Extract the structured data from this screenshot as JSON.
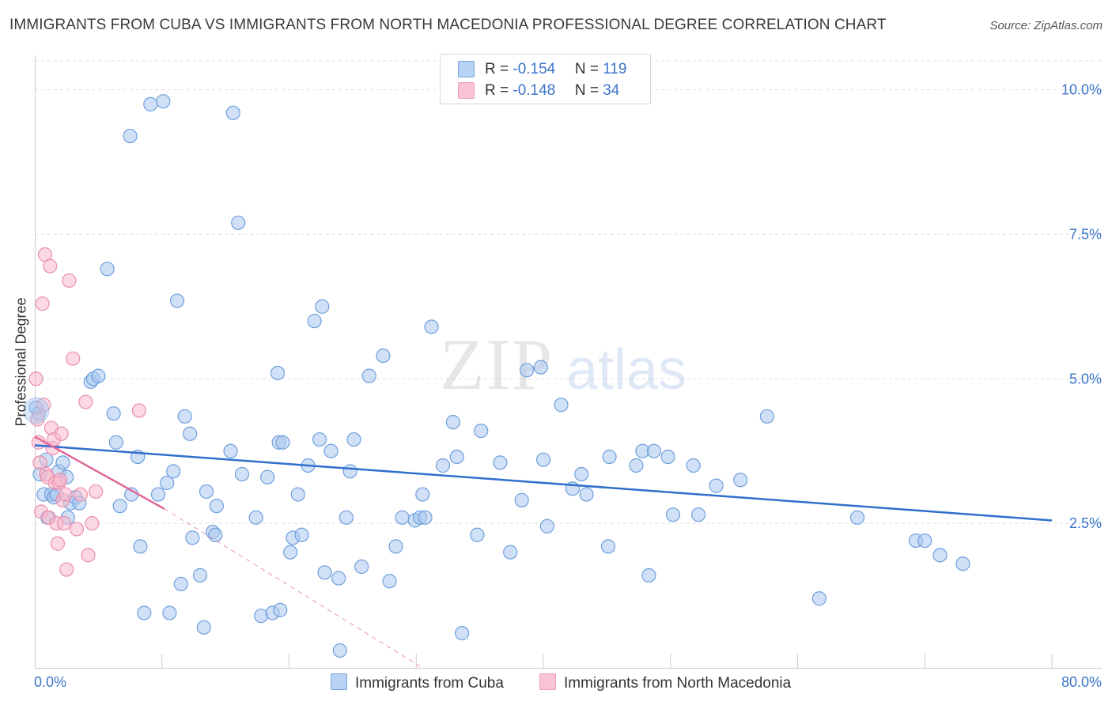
{
  "title": "IMMIGRANTS FROM CUBA VS IMMIGRANTS FROM NORTH MACEDONIA PROFESSIONAL DEGREE CORRELATION CHART",
  "source": "Source: ZipAtlas.com",
  "watermark": {
    "zip": "ZIP",
    "atlas": "atlas"
  },
  "colors": {
    "cuba_fill": "#a9c8f0",
    "cuba_stroke": "#6f9fdc",
    "cuba_line": "#2f6fcc",
    "mk_fill": "#f7b8cc",
    "mk_stroke": "#ea8fae",
    "mk_line": "#e0679a",
    "axis_text": "#3b75c9",
    "grid": "#dddddd"
  },
  "legend": {
    "rows": [
      {
        "r_label": "R = ",
        "r_value": "-0.154",
        "n_label": "N = ",
        "n_value": "119"
      },
      {
        "r_label": "R = ",
        "r_value": "-0.148",
        "n_label": "N = ",
        "n_value": "34"
      }
    ]
  },
  "chart_data": {
    "type": "scatter",
    "xlabel": "",
    "ylabel": "Professional Degree",
    "xlim": [
      0,
      80
    ],
    "ylim": [
      0,
      10.5
    ],
    "x_tick_labels": [
      "0.0%",
      "80.0%"
    ],
    "y_ticks": [
      2.5,
      5.0,
      7.5,
      10.0
    ],
    "y_tick_labels": [
      "2.5%",
      "5.0%",
      "7.5%",
      "10.0%"
    ],
    "grid": "horizontal dashed",
    "legend_placement": "bottom-center",
    "series": [
      {
        "name": "Immigrants from Cuba",
        "trend": {
          "x": [
            0,
            80
          ],
          "y": [
            3.85,
            2.55
          ]
        },
        "x": [
          0.1,
          0.3,
          0.4,
          0.7,
          0.9,
          1.0,
          1.3,
          1.5,
          1.7,
          1.9,
          2.2,
          2.5,
          2.6,
          2.8,
          3.2,
          3.5,
          4.4,
          4.6,
          5.0,
          5.7,
          6.2,
          6.4,
          6.7,
          7.5,
          7.6,
          8.1,
          8.3,
          8.6,
          9.1,
          9.7,
          10.1,
          10.4,
          10.6,
          10.9,
          11.2,
          11.5,
          11.8,
          12.2,
          12.4,
          13.0,
          13.3,
          13.5,
          14.0,
          14.2,
          14.3,
          15.4,
          15.6,
          16.0,
          16.3,
          17.4,
          17.8,
          18.3,
          18.7,
          19.1,
          19.2,
          19.3,
          19.5,
          20.1,
          20.3,
          20.7,
          21.0,
          21.5,
          22.0,
          22.4,
          22.6,
          22.8,
          23.3,
          23.9,
          24.0,
          24.5,
          24.8,
          25.1,
          25.7,
          26.3,
          27.4,
          27.9,
          28.4,
          28.9,
          29.9,
          30.3,
          30.5,
          30.7,
          31.2,
          32.1,
          32.9,
          33.2,
          33.6,
          34.8,
          35.1,
          36.6,
          37.4,
          38.3,
          38.7,
          39.8,
          40.0,
          40.3,
          41.4,
          42.3,
          43.0,
          43.4,
          45.1,
          45.2,
          47.3,
          47.8,
          48.3,
          48.7,
          49.8,
          50.2,
          51.8,
          52.2,
          53.6,
          55.5,
          57.6,
          61.7,
          64.7,
          69.3,
          70.0,
          71.2,
          73.0
        ],
        "y": [
          4.5,
          4.4,
          3.35,
          3.0,
          3.6,
          2.6,
          3.0,
          2.95,
          3.0,
          3.4,
          3.55,
          3.3,
          2.6,
          2.85,
          2.95,
          2.85,
          4.95,
          5.0,
          5.05,
          6.9,
          4.4,
          3.9,
          2.8,
          9.2,
          3.0,
          3.65,
          2.1,
          0.95,
          9.75,
          3.0,
          9.8,
          3.2,
          0.95,
          3.4,
          6.35,
          1.45,
          4.35,
          4.05,
          2.25,
          1.6,
          0.7,
          3.05,
          2.35,
          2.3,
          2.8,
          3.75,
          9.6,
          7.7,
          3.35,
          2.6,
          0.9,
          3.3,
          0.95,
          5.1,
          3.9,
          1.0,
          3.9,
          2.0,
          2.25,
          3.0,
          2.3,
          3.5,
          6.0,
          3.95,
          6.25,
          1.65,
          3.75,
          1.55,
          0.3,
          2.6,
          3.4,
          3.95,
          1.75,
          5.05,
          5.4,
          1.5,
          2.1,
          2.6,
          2.55,
          2.6,
          3.0,
          2.6,
          5.9,
          3.5,
          4.25,
          3.65,
          0.6,
          2.3,
          4.1,
          3.55,
          2.0,
          2.9,
          5.15,
          5.2,
          3.6,
          2.45,
          4.55,
          3.1,
          3.35,
          3.0,
          2.1,
          3.65,
          3.5,
          3.75,
          1.6,
          3.75,
          3.65,
          2.65,
          3.5,
          2.65,
          3.15,
          3.25,
          4.35,
          1.2,
          2.6,
          2.2,
          2.2,
          1.95,
          1.8
        ]
      },
      {
        "name": "Immigrants from North Macedonia",
        "trend": {
          "x": [
            0,
            10.2
          ],
          "y": [
            4.0,
            2.75
          ]
        },
        "trend_extension": {
          "x": [
            10.2,
            30.5
          ],
          "y": [
            2.75,
            0.0
          ]
        },
        "x": [
          0.1,
          0.2,
          0.3,
          0.4,
          0.5,
          0.6,
          0.7,
          0.8,
          0.9,
          1.0,
          1.1,
          1.2,
          1.3,
          1.4,
          1.5,
          1.6,
          1.7,
          1.8,
          1.9,
          2.0,
          2.1,
          2.2,
          2.3,
          2.4,
          2.5,
          2.7,
          3.0,
          3.3,
          3.6,
          4.0,
          4.2,
          4.5,
          4.8,
          8.2
        ],
        "y": [
          5.0,
          4.3,
          3.9,
          3.55,
          2.7,
          6.3,
          4.55,
          7.15,
          3.35,
          3.3,
          2.6,
          6.95,
          4.15,
          3.8,
          3.95,
          3.2,
          2.5,
          2.15,
          3.2,
          3.25,
          4.05,
          2.9,
          2.5,
          3.0,
          1.7,
          6.7,
          5.35,
          2.4,
          3.0,
          4.6,
          1.95,
          2.5,
          3.05,
          4.45
        ]
      }
    ]
  }
}
